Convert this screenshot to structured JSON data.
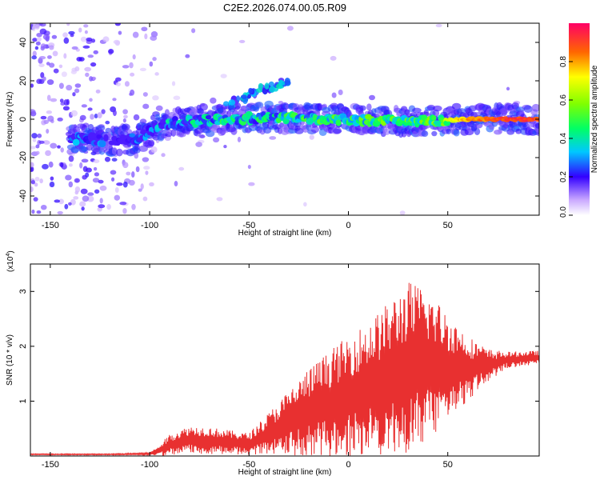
{
  "figure": {
    "title": "C2E2.2026.074.00.05.R09"
  },
  "chart_data": [
    {
      "type": "heatmap",
      "title": "C2E2.2026.074.00.05.R09",
      "xlabel": "Height of straight line (km)",
      "ylabel": "Frequency (Hz)",
      "xlim": [
        -160,
        96
      ],
      "ylim": [
        -50,
        50
      ],
      "xticks": [
        -150,
        -100,
        -50,
        0,
        50
      ],
      "xtick_labels": [
        "-150",
        "-100",
        "-50",
        "0",
        "50"
      ],
      "yticks": [
        -40,
        -20,
        0,
        20,
        40
      ],
      "ytick_labels": [
        "-40",
        "-20",
        "0",
        "20",
        "40"
      ],
      "colorbar": {
        "label": "Normalized spectral amplitude",
        "range": [
          0,
          1
        ],
        "ticks": [
          0.0,
          0.2,
          0.4,
          0.6,
          0.8
        ],
        "tick_labels": [
          "0.0",
          "0.2",
          "0.4",
          "0.6",
          "0.8"
        ]
      },
      "ridge": {
        "description_points_x_km": [
          -140,
          -120,
          -105,
          -95,
          -80,
          -60,
          -40,
          -20,
          0,
          20,
          40,
          60,
          80,
          95
        ],
        "frequency_hz": [
          -10,
          -11,
          -10,
          -3,
          -1,
          0,
          1,
          0,
          0,
          -1,
          -1,
          0,
          0,
          0
        ],
        "peak_amplitude": [
          0.35,
          0.3,
          0.3,
          0.4,
          0.45,
          0.5,
          0.5,
          0.55,
          0.55,
          0.6,
          0.6,
          0.85,
          0.95,
          0.95
        ]
      },
      "branch": {
        "x_km": [
          -65,
          -55,
          -45,
          -35,
          -30
        ],
        "frequency_hz": [
          5,
          10,
          15,
          18,
          20
        ]
      }
    },
    {
      "type": "line",
      "xlabel": "Height of straight line (km)",
      "ylabel": "SNR (10 * v/v)",
      "yscale_note": "(x10",
      "yscale_exp": "4",
      "xlim": [
        -160,
        96
      ],
      "ylim": [
        0,
        3.5
      ],
      "xticks": [
        -150,
        -100,
        -50,
        0,
        50
      ],
      "xtick_labels": [
        "-150",
        "-100",
        "-50",
        "0",
        "50"
      ],
      "yticks": [
        1,
        2,
        3
      ],
      "ytick_labels": [
        "1",
        "2",
        "3"
      ],
      "series": [
        {
          "name": "SNR",
          "color": "#e83030",
          "envelope_x_km": [
            -160,
            -120,
            -100,
            -95,
            -90,
            -80,
            -70,
            -60,
            -50,
            -40,
            -30,
            -20,
            -10,
            0,
            10,
            20,
            30,
            40,
            50,
            60,
            70,
            80,
            96
          ],
          "envelope_mean": [
            0.03,
            0.03,
            0.04,
            0.1,
            0.2,
            0.3,
            0.28,
            0.25,
            0.22,
            0.4,
            0.6,
            0.8,
            0.95,
            1.1,
            1.25,
            1.4,
            1.6,
            1.65,
            1.6,
            1.6,
            1.65,
            1.75,
            1.8
          ],
          "envelope_spread": [
            0.01,
            0.01,
            0.02,
            0.1,
            0.2,
            0.25,
            0.25,
            0.22,
            0.2,
            0.4,
            0.6,
            0.8,
            0.95,
            1.1,
            1.2,
            1.4,
            1.6,
            1.4,
            1.0,
            0.6,
            0.3,
            0.15,
            0.12
          ]
        }
      ]
    }
  ]
}
